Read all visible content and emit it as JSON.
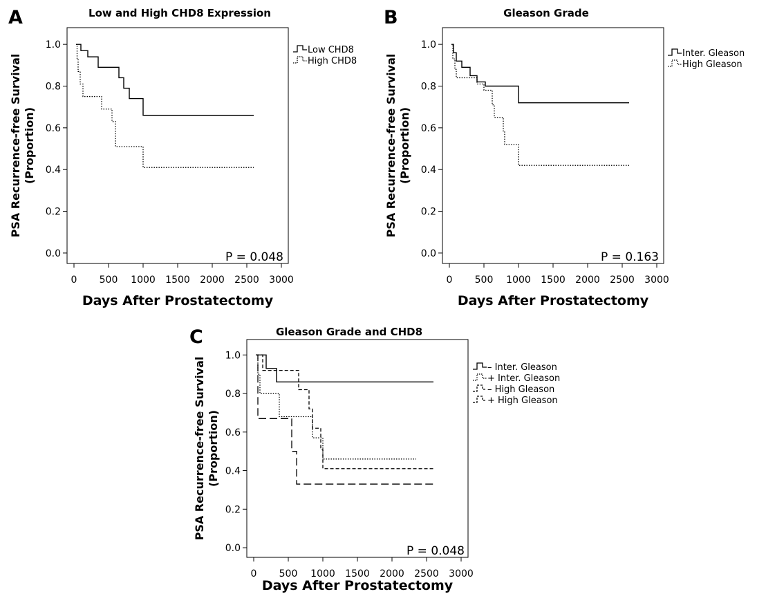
{
  "chart_data": [
    {
      "panel": "A",
      "type": "line",
      "title": "Low and High CHD8 Expression",
      "xlabel": "Days After Prostatectomy",
      "ylabel": [
        "PSA Recurrence-free Survival",
        "(Proportion)"
      ],
      "xlim": [
        -100,
        3100
      ],
      "ylim": [
        -0.05,
        1.08
      ],
      "xticks": [
        0,
        500,
        1000,
        1500,
        2000,
        2500,
        3000
      ],
      "yticks": [
        "0.0",
        "0.2",
        "0.4",
        "0.6",
        "0.8",
        "1.0"
      ],
      "annotation": "P = 0.048",
      "legend_position": "right, outside plot",
      "grid": false,
      "series": [
        {
          "name": "Low CHD8",
          "style": "solid",
          "points": [
            [
              30,
              1.0
            ],
            [
              100,
              0.97
            ],
            [
              200,
              0.94
            ],
            [
              350,
              0.89
            ],
            [
              650,
              0.84
            ],
            [
              720,
              0.79
            ],
            [
              800,
              0.74
            ],
            [
              1000,
              0.66
            ],
            [
              2600,
              0.66
            ]
          ]
        },
        {
          "name": "High CHD8",
          "style": "dotted",
          "points": [
            [
              30,
              1.0
            ],
            [
              45,
              0.93
            ],
            [
              60,
              0.87
            ],
            [
              90,
              0.81
            ],
            [
              130,
              0.75
            ],
            [
              400,
              0.69
            ],
            [
              550,
              0.63
            ],
            [
              600,
              0.51
            ],
            [
              900,
              0.51
            ],
            [
              1000,
              0.41
            ],
            [
              2600,
              0.41
            ]
          ]
        }
      ]
    },
    {
      "panel": "B",
      "type": "line",
      "title": "Gleason Grade",
      "xlabel": "Days After Prostatectomy",
      "ylabel": [
        "PSA Recurrence-free Survival",
        "(Proportion)"
      ],
      "xlim": [
        -100,
        3100
      ],
      "ylim": [
        -0.05,
        1.08
      ],
      "xticks": [
        0,
        500,
        1000,
        1500,
        2000,
        2500,
        3000
      ],
      "yticks": [
        "0.0",
        "0.2",
        "0.4",
        "0.6",
        "0.8",
        "1.0"
      ],
      "annotation": "P = 0.163",
      "legend_position": "right, outside plot",
      "grid": false,
      "series": [
        {
          "name": "Inter. Gleason",
          "style": "solid",
          "points": [
            [
              30,
              1.0
            ],
            [
              60,
              0.96
            ],
            [
              100,
              0.92
            ],
            [
              180,
              0.89
            ],
            [
              300,
              0.85
            ],
            [
              400,
              0.82
            ],
            [
              520,
              0.8
            ],
            [
              1000,
              0.72
            ],
            [
              2600,
              0.72
            ]
          ]
        },
        {
          "name": "High Gleason",
          "style": "dotted",
          "points": [
            [
              30,
              1.0
            ],
            [
              50,
              0.93
            ],
            [
              80,
              0.88
            ],
            [
              100,
              0.84
            ],
            [
              400,
              0.81
            ],
            [
              500,
              0.78
            ],
            [
              620,
              0.71
            ],
            [
              650,
              0.65
            ],
            [
              780,
              0.58
            ],
            [
              800,
              0.52
            ],
            [
              1000,
              0.42
            ],
            [
              2600,
              0.42
            ]
          ]
        }
      ]
    },
    {
      "panel": "C",
      "type": "line",
      "title": "Gleason Grade and CHD8",
      "xlabel": "Days After Prostatectomy",
      "ylabel": [
        "PSA Recurrence-free Survival",
        "(Proportion)"
      ],
      "xlim": [
        -100,
        3100
      ],
      "ylim": [
        -0.05,
        1.08
      ],
      "xticks": [
        0,
        500,
        1000,
        1500,
        2000,
        2500,
        3000
      ],
      "yticks": [
        "0.0",
        "0.2",
        "0.4",
        "0.6",
        "0.8",
        "1.0"
      ],
      "annotation": "P = 0.048",
      "legend_position": "right, outside plot",
      "grid": false,
      "series": [
        {
          "name": "– Inter. Gleason",
          "style": "solid",
          "points": [
            [
              30,
              1.0
            ],
            [
              180,
              0.93
            ],
            [
              330,
              0.86
            ],
            [
              2600,
              0.86
            ]
          ]
        },
        {
          "name": "+ Inter. Gleason",
          "style": "dotted",
          "points": [
            [
              30,
              1.0
            ],
            [
              60,
              0.9
            ],
            [
              90,
              0.8
            ],
            [
              370,
              0.68
            ],
            [
              700,
              0.68
            ],
            [
              850,
              0.57
            ],
            [
              1000,
              0.46
            ],
            [
              2350,
              0.46
            ]
          ]
        },
        {
          "name": "– High Gleason",
          "style": "dashed",
          "points": [
            [
              30,
              1.0
            ],
            [
              130,
              0.92
            ],
            [
              600,
              0.92
            ],
            [
              650,
              0.82
            ],
            [
              800,
              0.72
            ],
            [
              850,
              0.62
            ],
            [
              970,
              0.51
            ],
            [
              1000,
              0.41
            ],
            [
              2600,
              0.41
            ]
          ]
        },
        {
          "name": "+ High Gleason",
          "style": "longdash",
          "points": [
            [
              30,
              1.0
            ],
            [
              60,
              0.67
            ],
            [
              500,
              0.67
            ],
            [
              550,
              0.5
            ],
            [
              620,
              0.33
            ],
            [
              2600,
              0.33
            ]
          ]
        }
      ]
    }
  ]
}
